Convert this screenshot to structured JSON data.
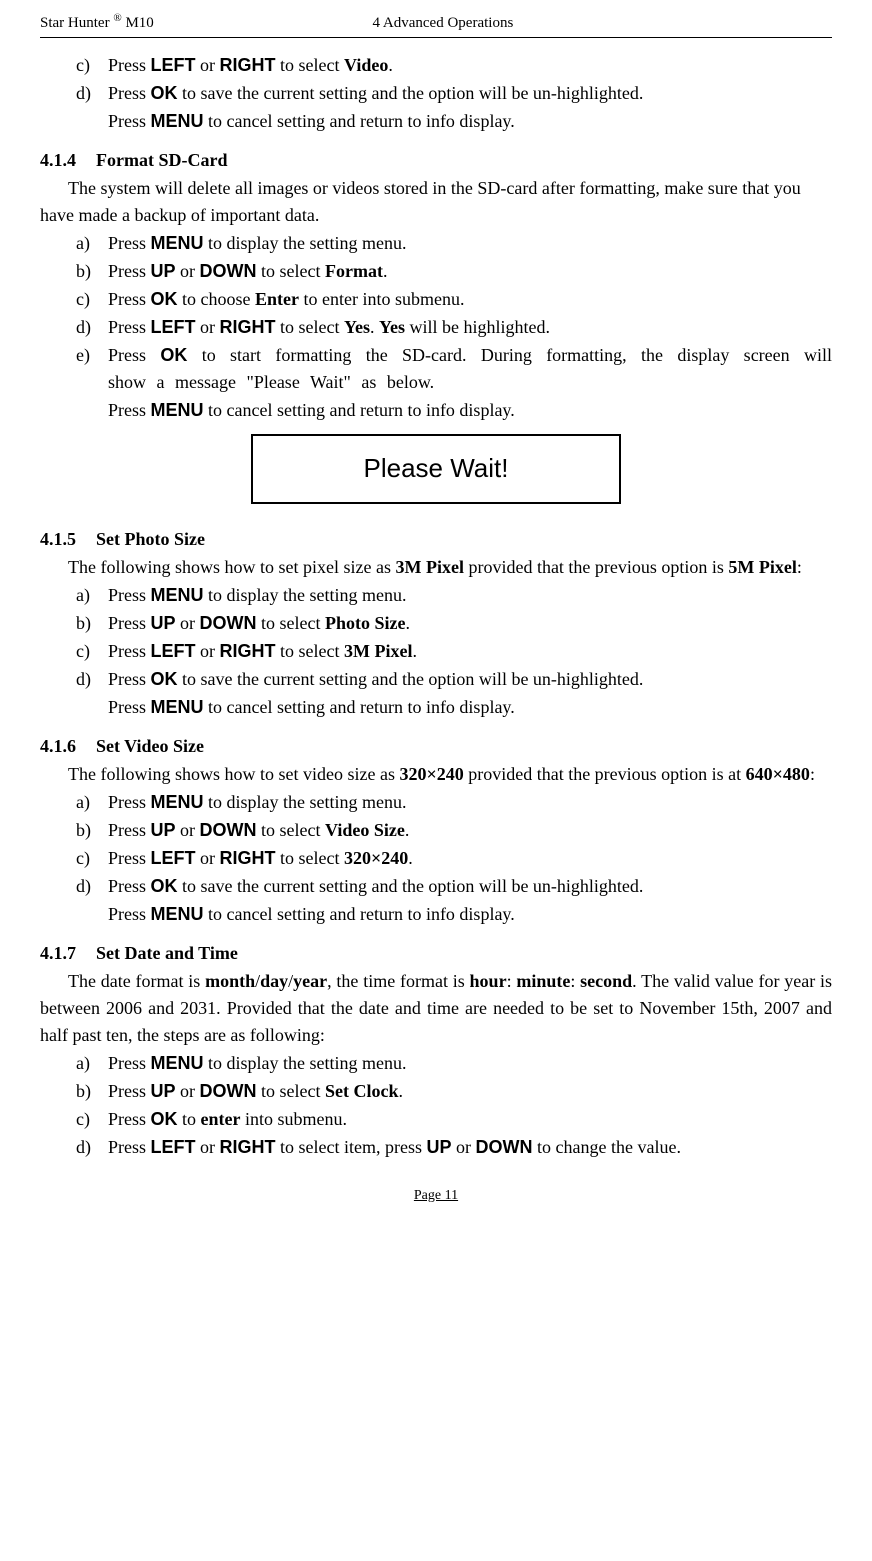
{
  "header": {
    "brand_name": "Star Hunter",
    "brand_sup": "®",
    "model": "M10",
    "chapter": "4 Advanced Operations"
  },
  "section_prefix_items": [
    {
      "marker": "c)",
      "parts": [
        {
          "t": "Press "
        },
        {
          "t": "LEFT",
          "sans": true,
          "bold": true
        },
        {
          "t": " or "
        },
        {
          "t": "RIGHT",
          "sans": true,
          "bold": true
        },
        {
          "t": " to select "
        },
        {
          "t": "Video",
          "bold": true
        },
        {
          "t": "."
        }
      ]
    },
    {
      "marker": "d)",
      "parts": [
        {
          "t": "Press "
        },
        {
          "t": "OK",
          "sans": true,
          "bold": true
        },
        {
          "t": " to save the current setting and the option will be un-highlighted."
        }
      ]
    },
    {
      "marker": "",
      "parts": [
        {
          "t": "Press "
        },
        {
          "t": "MENU",
          "sans": true,
          "bold": true
        },
        {
          "t": " to cancel setting and return to info display."
        }
      ]
    }
  ],
  "s414": {
    "num": "4.1.4",
    "title": "Format SD-Card",
    "intro": "The system will delete all images or videos stored in the SD-card after formatting, make sure that you have made a backup of important data.",
    "items": [
      {
        "marker": "a)",
        "parts": [
          {
            "t": "Press "
          },
          {
            "t": "MENU",
            "sans": true,
            "bold": true
          },
          {
            "t": " to display the setting menu."
          }
        ]
      },
      {
        "marker": "b)",
        "parts": [
          {
            "t": "Press "
          },
          {
            "t": "UP",
            "sans": true,
            "bold": true
          },
          {
            "t": " or "
          },
          {
            "t": "DOWN",
            "sans": true,
            "bold": true
          },
          {
            "t": " to select "
          },
          {
            "t": "Format",
            "bold": true
          },
          {
            "t": "."
          }
        ]
      },
      {
        "marker": "c)",
        "parts": [
          {
            "t": "Press "
          },
          {
            "t": "OK",
            "sans": true,
            "bold": true
          },
          {
            "t": " to choose "
          },
          {
            "t": "Enter",
            "bold": true
          },
          {
            "t": " to enter into submenu."
          }
        ]
      },
      {
        "marker": "d)",
        "parts": [
          {
            "t": "Press "
          },
          {
            "t": "LEFT",
            "sans": true,
            "bold": true
          },
          {
            "t": " or "
          },
          {
            "t": "RIGHT",
            "sans": true,
            "bold": true
          },
          {
            "t": " to select "
          },
          {
            "t": "Yes",
            "bold": true
          },
          {
            "t": ". "
          },
          {
            "t": "Yes",
            "bold": true
          },
          {
            "t": " will be highlighted."
          }
        ]
      },
      {
        "marker": "e)",
        "spread": true,
        "parts": [
          {
            "t": "Press "
          },
          {
            "t": "OK",
            "sans": true,
            "bold": true
          },
          {
            "t": " to start formatting the SD-card. During formatting, the display screen will show a message \"Please Wait\" as below."
          }
        ]
      },
      {
        "marker": "",
        "parts": [
          {
            "t": "Press "
          },
          {
            "t": "MENU",
            "sans": true,
            "bold": true
          },
          {
            "t": " to cancel setting and return to info display."
          }
        ]
      }
    ]
  },
  "please_wait": "Please Wait!",
  "s415": {
    "num": "4.1.5",
    "title": "Set Photo Size",
    "intro_parts": [
      {
        "t": "The following shows how to set pixel size as "
      },
      {
        "t": "3M Pixel",
        "bold": true
      },
      {
        "t": " provided that the previous option is "
      },
      {
        "t": "5M Pixel",
        "bold": true
      },
      {
        "t": ":"
      }
    ],
    "items": [
      {
        "marker": "a)",
        "parts": [
          {
            "t": "Press "
          },
          {
            "t": "MENU",
            "sans": true,
            "bold": true
          },
          {
            "t": " to display the setting menu."
          }
        ]
      },
      {
        "marker": "b)",
        "parts": [
          {
            "t": "Press "
          },
          {
            "t": "UP",
            "sans": true,
            "bold": true
          },
          {
            "t": " or "
          },
          {
            "t": "DOWN",
            "sans": true,
            "bold": true
          },
          {
            "t": " to select "
          },
          {
            "t": "Photo Size",
            "bold": true
          },
          {
            "t": "."
          }
        ]
      },
      {
        "marker": "c)",
        "parts": [
          {
            "t": "Press "
          },
          {
            "t": "LEFT",
            "sans": true,
            "bold": true
          },
          {
            "t": " or "
          },
          {
            "t": "RIGHT",
            "sans": true,
            "bold": true
          },
          {
            "t": " to select "
          },
          {
            "t": "3M Pixel",
            "bold": true
          },
          {
            "t": "."
          }
        ]
      },
      {
        "marker": "d)",
        "parts": [
          {
            "t": "Press "
          },
          {
            "t": "OK",
            "sans": true,
            "bold": true
          },
          {
            "t": " to save the current setting and the option will be un-highlighted."
          }
        ]
      },
      {
        "marker": "",
        "parts": [
          {
            "t": "Press "
          },
          {
            "t": "MENU",
            "sans": true,
            "bold": true
          },
          {
            "t": " to cancel setting and return to info display."
          }
        ]
      }
    ]
  },
  "s416": {
    "num": "4.1.6",
    "title": "Set Video Size",
    "intro_parts": [
      {
        "t": "The following shows how to set video size as "
      },
      {
        "t": "320×240",
        "bold": true
      },
      {
        "t": " provided that the previous option is at "
      },
      {
        "t": "640×480",
        "bold": true
      },
      {
        "t": ":"
      }
    ],
    "items": [
      {
        "marker": "a)",
        "parts": [
          {
            "t": "Press "
          },
          {
            "t": "MENU",
            "sans": true,
            "bold": true
          },
          {
            "t": " to display the setting menu."
          }
        ]
      },
      {
        "marker": "b)",
        "parts": [
          {
            "t": "Press "
          },
          {
            "t": "UP",
            "sans": true,
            "bold": true
          },
          {
            "t": " or "
          },
          {
            "t": "DOWN",
            "sans": true,
            "bold": true
          },
          {
            "t": " to select "
          },
          {
            "t": "Video Size",
            "bold": true
          },
          {
            "t": "."
          }
        ]
      },
      {
        "marker": "c)",
        "parts": [
          {
            "t": "Press "
          },
          {
            "t": "LEFT",
            "sans": true,
            "bold": true
          },
          {
            "t": " or "
          },
          {
            "t": "RIGHT",
            "sans": true,
            "bold": true
          },
          {
            "t": " to select "
          },
          {
            "t": "320×240",
            "bold": true
          },
          {
            "t": "."
          }
        ]
      },
      {
        "marker": "d)",
        "parts": [
          {
            "t": "Press "
          },
          {
            "t": "OK",
            "sans": true,
            "bold": true
          },
          {
            "t": " to save the current setting and the option will be un-highlighted."
          }
        ]
      },
      {
        "marker": "",
        "parts": [
          {
            "t": "Press "
          },
          {
            "t": "MENU",
            "sans": true,
            "bold": true
          },
          {
            "t": " to cancel setting and return to info display."
          }
        ]
      }
    ]
  },
  "s417": {
    "num": "4.1.7",
    "title": "Set Date and Time",
    "intro_parts": [
      {
        "t": "The date format is "
      },
      {
        "t": "month",
        "bold": true
      },
      {
        "t": "/"
      },
      {
        "t": "day",
        "bold": true
      },
      {
        "t": "/"
      },
      {
        "t": "year",
        "bold": true
      },
      {
        "t": ", the time format is "
      },
      {
        "t": "hour",
        "bold": true
      },
      {
        "t": ": "
      },
      {
        "t": "minute",
        "bold": true
      },
      {
        "t": ": "
      },
      {
        "t": "second",
        "bold": true
      },
      {
        "t": ". The valid value for year is between 2006 and 2031. Provided that the date and time are needed to be set to November 15th, 2007 and half past ten, the steps are as following:"
      }
    ],
    "items": [
      {
        "marker": "a)",
        "parts": [
          {
            "t": "Press "
          },
          {
            "t": "MENU",
            "sans": true,
            "bold": true
          },
          {
            "t": " to display the setting menu."
          }
        ]
      },
      {
        "marker": "b)",
        "parts": [
          {
            "t": "Press "
          },
          {
            "t": "UP",
            "sans": true,
            "bold": true
          },
          {
            "t": " or "
          },
          {
            "t": "DOWN",
            "sans": true,
            "bold": true
          },
          {
            "t": " to select "
          },
          {
            "t": "Set Clock",
            "bold": true
          },
          {
            "t": "."
          }
        ]
      },
      {
        "marker": "c)",
        "parts": [
          {
            "t": "Press "
          },
          {
            "t": "OK",
            "sans": true,
            "bold": true
          },
          {
            "t": " to "
          },
          {
            "t": "enter",
            "bold": true
          },
          {
            "t": " into submenu."
          }
        ]
      },
      {
        "marker": "d)",
        "parts": [
          {
            "t": "Press "
          },
          {
            "t": "LEFT",
            "sans": true,
            "bold": true
          },
          {
            "t": " or "
          },
          {
            "t": "RIGHT",
            "sans": true,
            "bold": true
          },
          {
            "t": " to select item, press "
          },
          {
            "t": "UP",
            "sans": true,
            "bold": true
          },
          {
            "t": " or "
          },
          {
            "t": "DOWN",
            "sans": true,
            "bold": true
          },
          {
            "t": " to change the value."
          }
        ]
      }
    ]
  },
  "footer": "Page 11"
}
